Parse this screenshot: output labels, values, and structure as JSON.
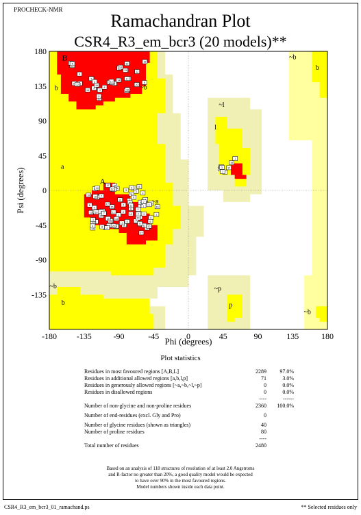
{
  "header": {
    "program": "PROCHECK-NMR",
    "title": "Ramachandran Plot",
    "subtitle": "CSR4_R3_em_bcr3 (20 models)**"
  },
  "chart_data": {
    "type": "scatter",
    "title": "Ramachandran Plot",
    "subtitle": "CSR4_R3_em_bcr3 (20 models)**",
    "xlabel": "Phi (degrees)",
    "ylabel": "Psi (degrees)",
    "xlim": [
      -180,
      180
    ],
    "ylim": [
      -180,
      180
    ],
    "x_ticks": [
      "-180",
      "-135",
      "-90",
      "-45",
      "0",
      "45",
      "90",
      "135",
      "180"
    ],
    "y_ticks": [
      "180",
      "135",
      "90",
      "45",
      "0",
      "-45",
      "-90",
      "-135"
    ],
    "region_labels": [
      {
        "text": "B",
        "phi": -160,
        "psi": 168
      },
      {
        "text": "b",
        "phi": -171,
        "psi": 130
      },
      {
        "text": "~b",
        "phi": -58,
        "psi": 131
      },
      {
        "text": "~l",
        "phi": 43,
        "psi": 108
      },
      {
        "text": "l",
        "phi": 35,
        "psi": 79
      },
      {
        "text": "a",
        "phi": -163,
        "psi": 28
      },
      {
        "text": "A",
        "phi": -111,
        "psi": 8
      },
      {
        "text": "~a",
        "phi": -43,
        "psi": -17
      },
      {
        "text": "~b",
        "phi": -175,
        "psi": -127
      },
      {
        "text": "b",
        "phi": -162,
        "psi": -148
      },
      {
        "text": "~p",
        "phi": 38,
        "psi": -130
      },
      {
        "text": "p",
        "phi": 55,
        "psi": -151
      },
      {
        "text": "~b",
        "phi": 135,
        "psi": 170
      },
      {
        "text": "b",
        "phi": 167,
        "psi": 156
      },
      {
        "text": "~b",
        "phi": 154,
        "psi": -160
      }
    ],
    "clusters": [
      {
        "phi_range": [
          -155,
          -95
        ],
        "psi_range": [
          115,
          168
        ],
        "n": 18
      },
      {
        "phi_range": [
          -100,
          -55
        ],
        "psi_range": [
          125,
          170
        ],
        "n": 16
      },
      {
        "phi_range": [
          -130,
          -55
        ],
        "psi_range": [
          -50,
          8
        ],
        "n": 70
      },
      {
        "phi_range": [
          -65,
          -40
        ],
        "psi_range": [
          -55,
          -15
        ],
        "n": 14
      },
      {
        "phi_range": [
          40,
          70
        ],
        "psi_range": [
          20,
          50
        ],
        "n": 8
      }
    ],
    "grid": true,
    "legend": "none"
  },
  "statistics": {
    "title": "Plot statistics",
    "rows": [
      {
        "label": "Residues in most favoured regions  [A,B,L]",
        "count": "2289",
        "percent": "97.0%"
      },
      {
        "label": "Residues in additional allowed regions  [a,b,l,p]",
        "count": "71",
        "percent": "3.0%"
      },
      {
        "label": "Residues in generously allowed regions  [~a,~b,~l,~p]",
        "count": "0",
        "percent": "0.0%"
      },
      {
        "label": "Residues in disallowed regions",
        "count": "0",
        "percent": "0.0%"
      },
      {
        "label": "Number of non-glycine and non-proline residues",
        "count": "2360",
        "percent": "100.0%"
      },
      {
        "label": "Number of end-residues (excl. Gly and Pro)",
        "count": "0",
        "percent": ""
      },
      {
        "label": "Number of glycine residues (shown as triangles)",
        "count": "40",
        "percent": ""
      },
      {
        "label": "Number of proline residues",
        "count": "80",
        "percent": ""
      },
      {
        "label": "Total number of residues",
        "count": "2480",
        "percent": ""
      }
    ],
    "separator_count": "----",
    "separator_percent": "------"
  },
  "note": [
    "Based on an analysis of 118 structures of resolution of at least 2.0 Angstroms",
    "and R-factor no greater than 20%, a good quality model would be expected",
    "to have over 90% in the most favoured regions.",
    "Model numbers shown inside each data point."
  ],
  "footer": {
    "filename": "CSR4_R3_em_bcr3_01_ramachand.ps",
    "selected": "** Selected residues only"
  },
  "colors": {
    "favoured": "#ff0000",
    "allowed": "#ffff00",
    "generous": "#ffffa0",
    "generous_edge": "#f0f0b4",
    "disallowed": "#ffffff"
  }
}
